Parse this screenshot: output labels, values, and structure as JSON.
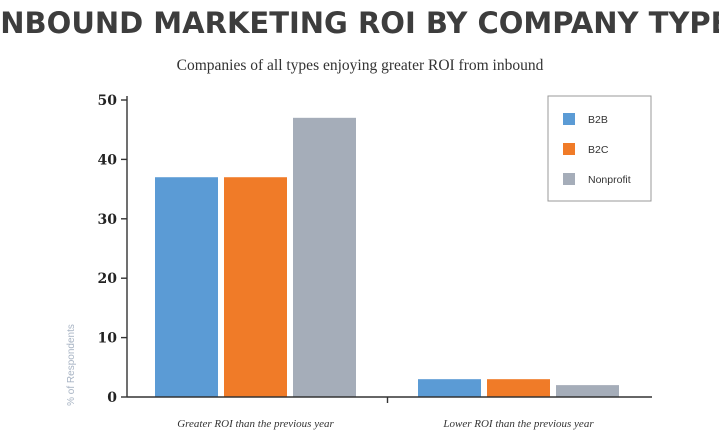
{
  "chart_data": {
    "type": "bar",
    "title": "INBOUND MARKETING ROI BY COMPANY TYPE",
    "subtitle": "Companies of all types enjoying greater ROI from inbound",
    "ylabel": "% of Respondents",
    "xlabel": "",
    "categories": [
      "Greater ROI than the previous year",
      "Lower ROI than the previous year"
    ],
    "series": [
      {
        "name": "B2B",
        "color": "#5b9bd5",
        "values": [
          37,
          3
        ]
      },
      {
        "name": "B2C",
        "color": "#f07b28",
        "values": [
          37,
          3
        ]
      },
      {
        "name": "Nonprofit",
        "color": "#a5adb9",
        "values": [
          47,
          2
        ]
      }
    ],
    "ylim": [
      0,
      50
    ],
    "yticks": [
      "0",
      "10",
      "20",
      "30",
      "40",
      "50"
    ],
    "grid": false,
    "legend_position": "top-right"
  }
}
